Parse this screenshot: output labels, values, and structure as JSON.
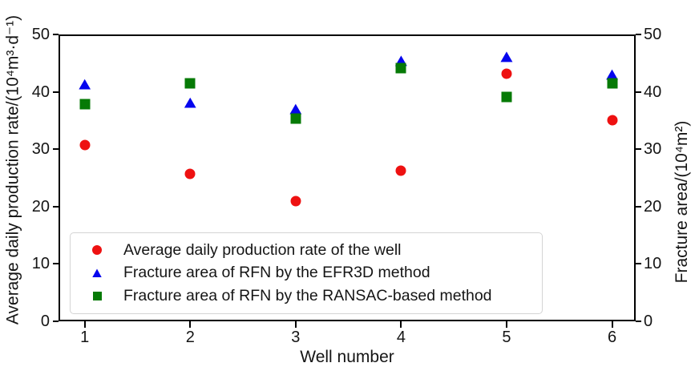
{
  "chart_data": {
    "type": "scatter",
    "title": "",
    "xlabel": "Well number",
    "ylabel_left": "Average daily production rate/(10⁴m³·d⁻¹)",
    "ylabel_right": "Fracture area/(10⁴m²)",
    "x_ticks": [
      1,
      2,
      3,
      4,
      5,
      6
    ],
    "y_ticks_left": [
      0,
      10,
      20,
      30,
      40,
      50
    ],
    "y_ticks_right": [
      0,
      10,
      20,
      30,
      40,
      50
    ],
    "xlim": [
      1,
      6
    ],
    "ylim_left": [
      0,
      50
    ],
    "ylim_right": [
      0,
      50
    ],
    "grid": false,
    "legend_position": "lower left",
    "categories": [
      1,
      2,
      3,
      4,
      5,
      6
    ],
    "series": [
      {
        "name": "Average daily production rate of the well",
        "marker": "circle",
        "color": "#ee1111",
        "axis": "left",
        "values": [
          30.7,
          25.7,
          20.9,
          26.3,
          43.2,
          35.1
        ]
      },
      {
        "name": "Fracture area of RFN by the EFR3D method",
        "marker": "triangle",
        "color": "#0505ee",
        "axis": "right",
        "values": [
          41.3,
          38.1,
          37.0,
          45.4,
          46.1,
          43.0
        ]
      },
      {
        "name": "Fracture area of RFN by the RANSAC-based method",
        "marker": "square",
        "color": "#067a06",
        "axis": "right",
        "values": [
          37.8,
          41.5,
          35.3,
          44.2,
          39.1,
          41.5
        ]
      }
    ]
  }
}
